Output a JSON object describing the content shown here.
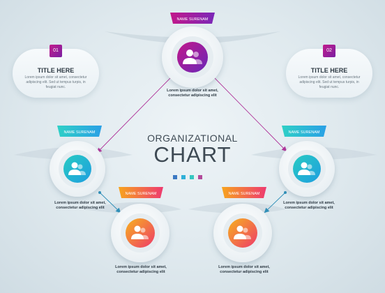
{
  "nodes": {
    "top": {
      "name": "NAME SURENAM",
      "description": "Lorem ipsum dolor sit amet,\nconsectetur adipiscing elit"
    },
    "left": {
      "name": "NAME SURENAM",
      "description": "Lorem ipsum dolor sit amet,\nconsectetur adipiscing elit"
    },
    "right": {
      "name": "NAME SURENAM",
      "description": "Lorem ipsum dolor sit amet,\nconsectetur adipiscing elit"
    },
    "bottom_left": {
      "name": "NAME SURENAM",
      "description": "Lorem ipsum dolor sit amet,\nconsectetur adipiscing elit"
    },
    "bottom_right": {
      "name": "NAME SURENAM",
      "description": "Lorem ipsum dolor sit amet,\nconsectetur adipiscing elit"
    }
  },
  "cards": {
    "left": {
      "number": "01",
      "title": "TITLE HERE",
      "text": "Lorem ipsum dolor sit amet, consectetur adipiscing elit. Sed ut tempus turpis, in feugiat nunc."
    },
    "right": {
      "number": "02",
      "title": "TITLE HERE",
      "text": "Lorem ipsum dolor sit amet, consectetur adipiscing elit. Sed ut tempus turpis, in feugiat nunc."
    }
  },
  "center": {
    "line1": "ORGANIZATIONAL",
    "line2": "CHART"
  },
  "colors": {
    "purple": "#8a2bb5",
    "magenta": "#c2188a",
    "cyan": "#1fb8d6",
    "teal": "#27cbc2",
    "orange": "#f7931e",
    "red": "#ee4a5c",
    "dot1": "#3b78c2",
    "dot2": "#2fb0d8",
    "dot3": "#35c6c0",
    "dot4": "#b24a9a"
  },
  "icons": {
    "person": "person-icon"
  }
}
